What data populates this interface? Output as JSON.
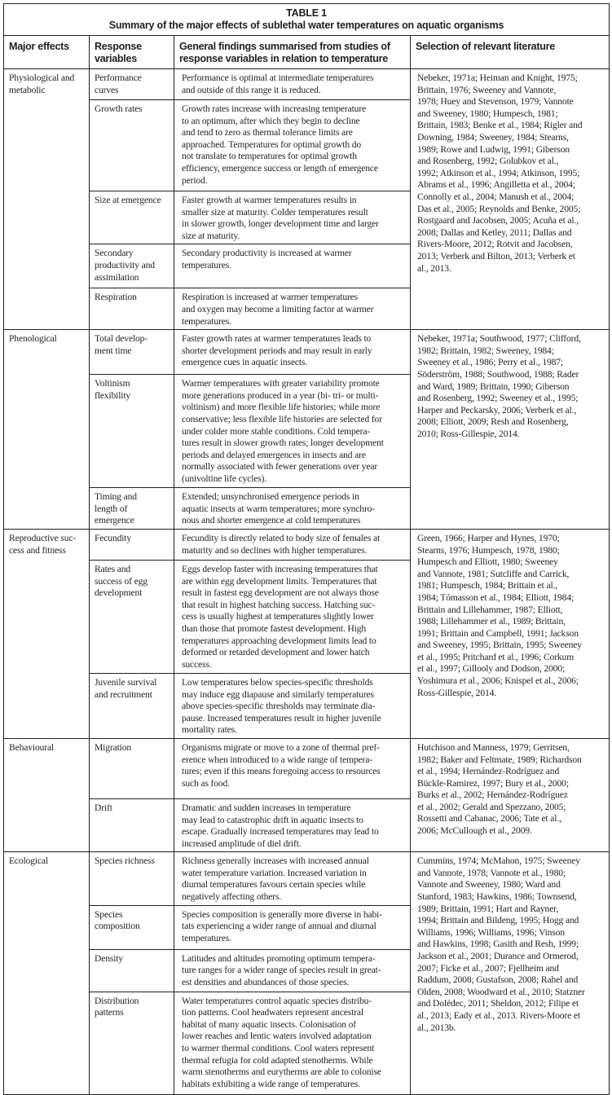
{
  "table": {
    "label": "TABLE 1",
    "caption": "Summary of the major effects of sublethal water temperatures on aquatic organisms",
    "headers": [
      "Major effects",
      "Response\nvariables",
      "General findings summarised from studies of\nresponse variables in relation to temperature",
      "Selection of relevant literature"
    ],
    "groups": [
      {
        "effect": "Physiological and\nmetabolic",
        "literature": "Nebeker, 1971a; Heiman and Knight, 1975;\nBrittain, 1976; Sweeney and Vannote,\n1978; Huey and Stevenson, 1979; Vannote\nand Sweeney, 1980; Humpesch, 1981;\nBrittain, 1983; Benke et al., 1984; Rigler and\nDowning, 1984; Sweeney, 1984; Stearns,\n1989; Rowe and Ludwig, 1991; Giberson\nand Rosenberg, 1992; Golubkov et al.,\n1992; Atkinson et al., 1994; Atkinson, 1995;\nAbrams et al., 1996; Angilletta et al., 2004;\nConnolly et al., 2004; Manush et al., 2004;\nDas et al., 2005; Reynolds and Benke, 2005;\nRostgaard and Jacobsen, 2005; Acuña et al.,\n2008; Dallas and Ketley, 2011; Dallas and\nRivers-Moore, 2012; Rotvit and Jacobsen,\n2013; Verberk and Bilton, 2013; Verberk et\nal., 2013.",
        "responses": [
          {
            "variable": "Performance\ncurves",
            "finding": "Performance is optimal at intermediate temperatures\nand outside of this range it is reduced."
          },
          {
            "variable": "Growth rates",
            "finding": "Growth rates increase with increasing temperature\nto an optimum, after which they begin to decline\nand tend to zero as thermal tolerance limits are\napproached. Temperatures for optimal growth do\nnot translate to temperatures for optimal growth\nefficiency, emergence success or length of emergence\nperiod."
          },
          {
            "variable": "Size at emergence",
            "finding": "Faster growth at warmer temperatures results in\nsmaller size at maturity. Colder temperatures result\nin slower growth, longer development time and larger\nsize at maturity."
          },
          {
            "variable": "Secondary\nproductivity and\nassimilation",
            "finding": "Secondary productivity is increased at warmer\ntemperatures."
          },
          {
            "variable": "Respiration",
            "finding": "Respiration is increased at warmer temperatures\nand oxygen may become a limiting factor at warmer\ntemperatures."
          }
        ]
      },
      {
        "effect": "Phenological",
        "literature": "Nebeker, 1971a; Southwood, 1977; Clifford,\n1982; Brittain, 1982; Sweeney, 1984;\nSweeney et al., 1986; Perry et al., 1987;\nSöderström, 1988; Southwood, 1988; Rader\nand Ward, 1989; Brittain, 1990; Giberson\nand Rosenberg, 1992; Sweeney et al., 1995;\nHarper and Peckarsky, 2006; Verberk et al.,\n2008; Elliott, 2009; Resh and Rosenberg,\n2010; Ross-Gillespie, 2014.",
        "responses": [
          {
            "variable": "Total develop-\nment time",
            "finding": "Faster growth rates at warmer temperatures leads to\nshorter development periods and may result in early\nemergence cues in aquatic insects."
          },
          {
            "variable": "Voltinism\nflexibility",
            "finding": "Warmer temperatures with greater variability promote\nmore generations produced in a year (bi- tri- or multi-\nvoltinism) and more flexible life histories; while more\nconservative; less flexible life histories are selected for\nunder colder more stable conditions. Cold tempera-\ntures result in slower growth rates; longer development\nperiods and delayed emergences in insects and are\nnormally associated with fewer generations over year\n(univoltine life cycles)."
          },
          {
            "variable": "Timing and\nlength of\nemergence",
            "finding": "Extended; unsynchronised emergence periods in\naquatic insects at warm temperatures; more synchro-\nnous and shorter emergence at cold temperatures"
          }
        ]
      },
      {
        "effect": "Reproductive suc-\ncess and fitness",
        "literature": "Green, 1966; Harper and Hynes, 1970;\nStearns, 1976; Humpesch, 1978, 1980;\nHumpesch and Elliott, 1980; Sweeney\nand Vannote, 1981; Sutcliffe and Carrick,\n1981; Humpesch, 1984; Brittain et al.,\n1984; Tómasson et al., 1984; Elliott, 1984;\nBrittain and Lillehammer, 1987; Elliott,\n1988; Lillehammer et al., 1989; Brittain,\n1991; Brittain and Campbell, 1991; Jackson\nand Sweeney, 1995; Brittain, 1995; Sweeney\net al., 1995; Pritchard et al., 1996; Corkum\net al., 1997; Gillooly and Dodson, 2000;\nYoshimura et al., 2006; Knispel et al., 2006;\nRoss-Gillespie, 2014.",
        "responses": [
          {
            "variable": "Fecundity",
            "finding": "Fecundity is directly related to body size of females at\nmaturity and so declines with higher temperatures."
          },
          {
            "variable": "Rates and\nsuccess of egg\ndevelopment",
            "finding": "Eggs develop faster with increasing temperatures that\nare within egg development limits. Temperatures that\nresult in fastest egg development are not always those\nthat result in highest hatching success. Hatching suc-\ncess is usually highest at temperatures slightly lower\nthan those that promote fastest development. High\ntemperatures approaching development limits lead to\ndeformed or retarded development and lower hatch\nsuccess."
          },
          {
            "variable": "Juvenile survival\nand recruitment",
            "finding": "Low temperatures below species-specific thresholds\nmay induce egg diapause and similarly temperatures\nabove species-specific thresholds may terminate dia-\npause. Increased temperatures result in higher juvenile\nmortality rates."
          }
        ]
      },
      {
        "effect": "Behavioural",
        "literature": "Hutchison and Manness, 1979; Gerritsen,\n1982; Baker and Feltmate, 1989; Richardson\net al., 1994; Hernández-Rodríguez and\nBückle-Ramirez, 1997; Bury et al., 2000;\nBurks et al., 2002; Hernández-Rodríguez\net al., 2002; Gerald and Spezzano, 2005;\nRossetti and Cabanac, 2006; Tate et al.,\n2006; McCullough et al., 2009.",
        "responses": [
          {
            "variable": "Migration",
            "finding": "Organisms migrate or move to a zone of thermal pref-\nerence when introduced to a wide range of tempera-\ntures; even if this means foregoing access to resources\nsuch as food."
          },
          {
            "variable": "Drift",
            "finding": "Dramatic and sudden increases in temperature\nmay lead to catastrophic drift in aquatic insects to\nescape. Gradually increased temperatures may lead to\nincreased amplitude of diel drift."
          }
        ]
      },
      {
        "effect": "Ecological",
        "literature": "Cummins, 1974; McMahon, 1975; Sweeney\nand Vannote, 1978; Vannote et al., 1980;\nVannote and Sweeney, 1980; Ward and\nStanford, 1983; Hawkins, 1986; Townsend,\n1989; Brittain, 1991; Hart and Rayner,\n1994; Brittain and Bildeng, 1995; Hogg and\nWilliams, 1996; Williams, 1996; Vinson\nand Hawkins, 1998; Gasith and Resh, 1999;\nJackson et al., 2001; Durance and Ormerod,\n2007; Ficke et al., 2007; Fjellheim and\nRaddum, 2008; Gustafson, 2008; Rahel and\nOlden, 2008; Woodward et al., 2010; Statzner\nand Dolédec, 2011; Sheldon, 2012; Filipe et\nal., 2013; Eady et al., 2013. Rivers-Moore et\nal., 2013b.",
        "responses": [
          {
            "variable": "Species richness",
            "finding": "Richness generally increases with increased annual\nwater temperature variation. Increased variation in\ndiurnal temperatures favours certain species while\nnegatively affecting others."
          },
          {
            "variable": "Species\ncomposition",
            "finding": "Species composition is generally more diverse in habi-\ntats experiencing a wider range of annual and diurnal\ntemperatures."
          },
          {
            "variable": "Density",
            "finding": "Latitudes and altitudes promoting optimum tempera-\nture ranges for a wider range of species result in great-\nest densities and abundances of those species."
          },
          {
            "variable": "Distribution\npatterns",
            "finding": "Water temperatures control aquatic species distribu-\ntion patterns. Cool headwaters represent ancestral\nhabitat of many aquatic insects. Colonisation of\nlower reaches and lentic waters involved adaptation\nto warmer thermal conditions. Cool waters represent\nthermal refugia for cold adapted stenotherms. While\nwarm stenotherms and eurytherms are able to colonise\nhabitats exhibiting a wide range of temperatures."
          }
        ]
      }
    ]
  }
}
